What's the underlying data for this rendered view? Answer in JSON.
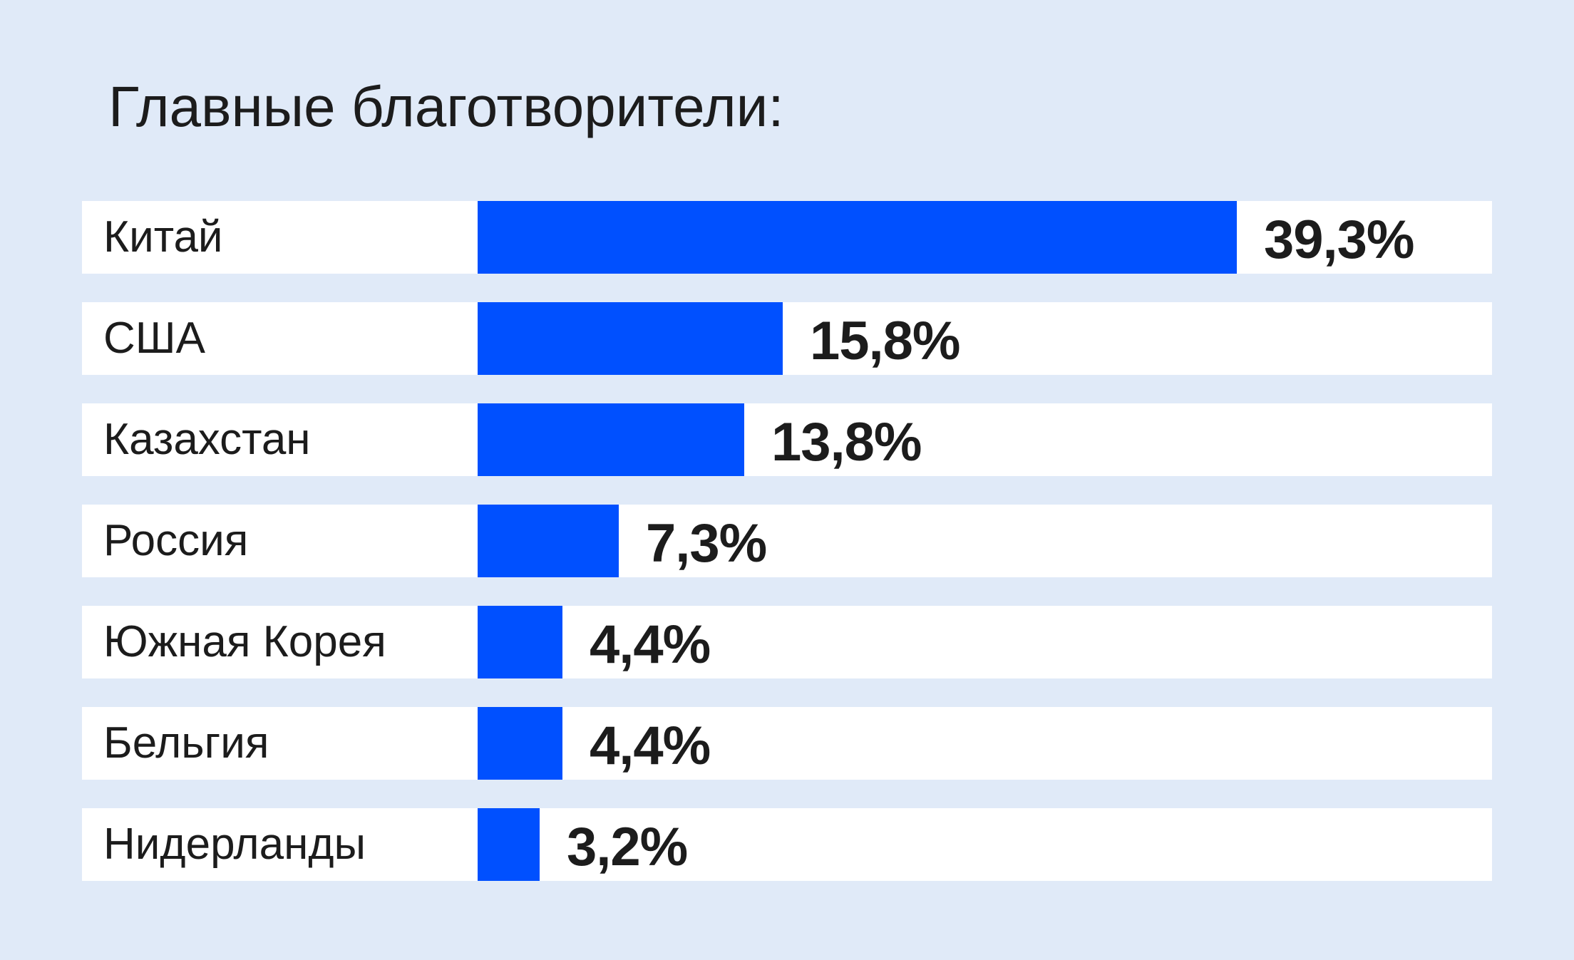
{
  "chart_data": {
    "type": "bar",
    "orientation": "horizontal",
    "title": "Главные благотворители:",
    "categories": [
      "Китай",
      "США",
      "Казахстан",
      "Россия",
      "Южная Корея",
      "Бельгия",
      "Нидерланды"
    ],
    "values": [
      39.3,
      15.8,
      13.8,
      7.3,
      4.4,
      4.4,
      3.2
    ],
    "value_labels": [
      "39,3%",
      "15,8%",
      "13,8%",
      "7,3%",
      "4,4%",
      "4,4%",
      "3,2%"
    ],
    "unit": "%",
    "xlim": [
      0,
      39.3
    ],
    "grid": false,
    "legend": "none",
    "colors": {
      "background": "#e0eaf8",
      "row": "#ffffff",
      "bar": "#0050ff",
      "text": "#1c1c1c"
    }
  }
}
